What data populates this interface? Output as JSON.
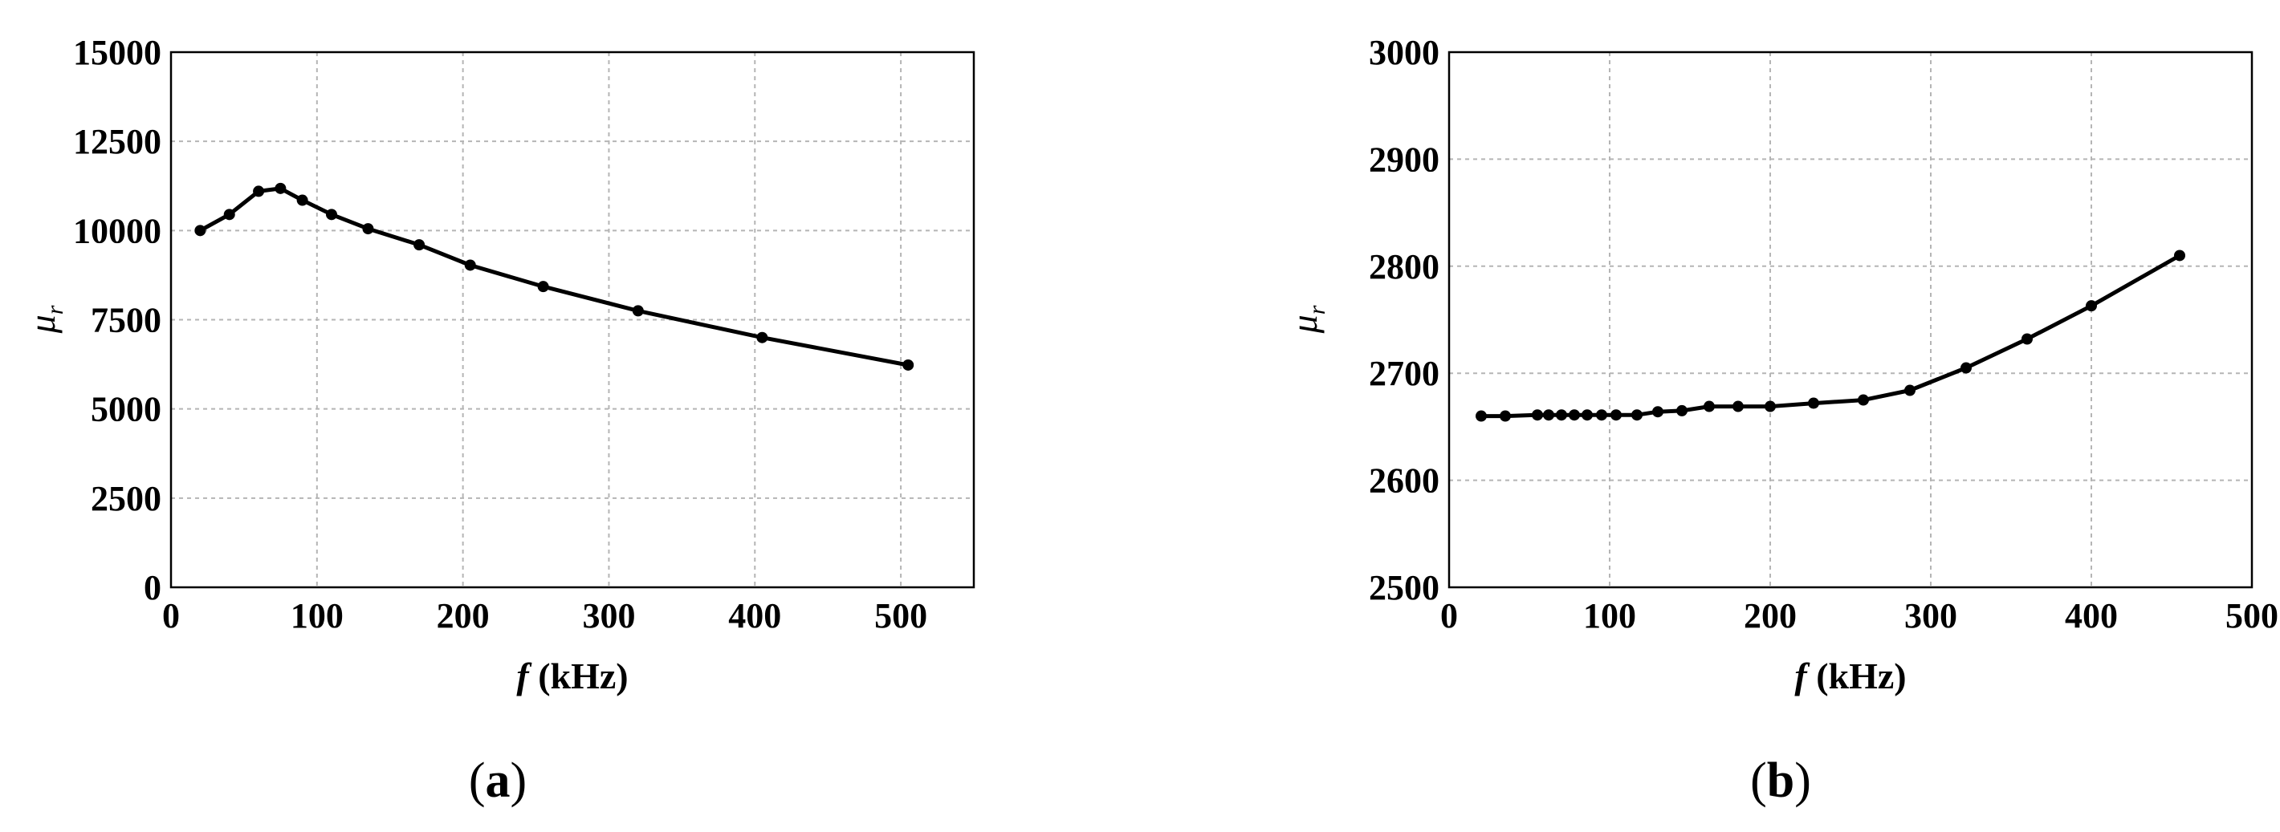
{
  "chart_data": [
    {
      "type": "line",
      "panel_label": "(a)",
      "xlabel": "f (kHz)",
      "xlabel_italic": "f",
      "xlabel_rest": " (kHz)",
      "ylabel": "μr",
      "ylabel_main": "μ",
      "ylabel_sub": "r",
      "xlim": [
        0,
        550
      ],
      "ylim": [
        0,
        15000
      ],
      "xticks": [
        0,
        100,
        200,
        300,
        400,
        500
      ],
      "yticks": [
        0,
        2500,
        5000,
        7500,
        10000,
        12500,
        15000
      ],
      "grid": true,
      "series": [
        {
          "x": [
            20,
            40,
            60,
            75,
            90,
            110,
            135,
            170,
            205,
            255,
            320,
            405,
            505
          ],
          "y": [
            10000,
            10450,
            11100,
            11180,
            10850,
            10450,
            10050,
            9600,
            9030,
            8430,
            7750,
            7000,
            6230
          ]
        }
      ]
    },
    {
      "type": "line",
      "panel_label": "(b)",
      "xlabel": "f (kHz)",
      "xlabel_italic": "f",
      "xlabel_rest": " (kHz)",
      "ylabel": "μr",
      "ylabel_main": "μ",
      "ylabel_sub": "r",
      "xlim": [
        0,
        500
      ],
      "ylim": [
        2500,
        3000
      ],
      "xticks": [
        0,
        100,
        200,
        300,
        400,
        500
      ],
      "yticks": [
        2500,
        2600,
        2700,
        2800,
        2900,
        3000
      ],
      "grid": true,
      "series": [
        {
          "x": [
            20,
            35,
            55,
            62,
            70,
            78,
            86,
            95,
            104,
            117,
            130,
            145,
            162,
            180,
            200,
            227,
            258,
            287,
            322,
            360,
            400,
            455
          ],
          "y": [
            2660,
            2660,
            2661,
            2661,
            2661,
            2661,
            2661,
            2661,
            2661,
            2661,
            2664,
            2665,
            2669,
            2669,
            2669,
            2672,
            2675,
            2684,
            2705,
            2732,
            2763,
            2810
          ]
        }
      ]
    }
  ]
}
